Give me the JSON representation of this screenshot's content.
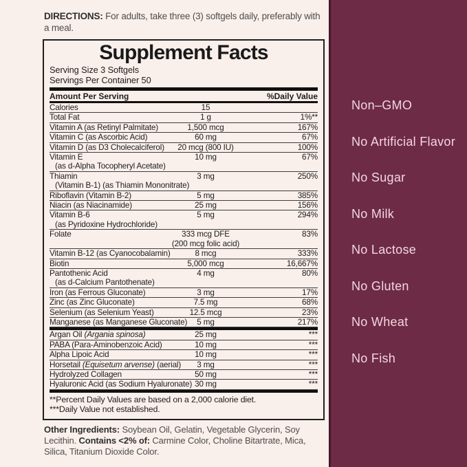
{
  "directions": {
    "label": "DIRECTIONS:",
    "text": " For adults, take three (3) softgels daily, preferably with a meal."
  },
  "panel": {
    "title": "Supplement Facts",
    "serving_size": "Serving Size 3 Softgels",
    "servings_per_container": "Servings Per Container 50",
    "header": {
      "left": "Amount Per Serving",
      "right": "%Daily Value"
    },
    "rows": [
      {
        "name": "Calories",
        "amount": "15",
        "dv": ""
      },
      {
        "name": "Total Fat",
        "amount": "1 g",
        "dv": "1%**"
      },
      {
        "name": "Vitamin A (as Retinyl Palmitate)",
        "amount": "1,500 mcg",
        "dv": "167%"
      },
      {
        "name": "Vitamin C (as Ascorbic Acid)",
        "amount": "60 mg",
        "dv": "67%"
      },
      {
        "name": "Vitamin D (as D3 Cholecalciferol)",
        "amount": "20 mcg (800 IU)",
        "dv": "100%"
      },
      {
        "name": "Vitamin E",
        "sub": "(as d-Alpha Tocopheryl Acetate)",
        "amount": "10 mg",
        "dv": "67%"
      },
      {
        "name": "Thiamin",
        "sub": "(Vitamin B-1) (as Thiamin Mononitrate)",
        "amount": "3 mg",
        "dv": "250%"
      },
      {
        "name": "Riboflavin (Vitamin B-2)",
        "amount": "5 mg",
        "dv": "385%"
      },
      {
        "name": "Niacin (as Niacinamide)",
        "amount": "25 mg",
        "dv": "156%"
      },
      {
        "name": "Vitamin B-6",
        "sub": "(as Pyridoxine Hydrochloride)",
        "amount": "5 mg",
        "dv": "294%"
      },
      {
        "name": "Folate",
        "amount": "333 mcg DFE",
        "amount_sub": "(200 mcg folic acid)",
        "dv": "83%"
      },
      {
        "name": "Vitamin B-12 (as Cyanocobalamin)",
        "amount": "8 mcg",
        "dv": "333%"
      },
      {
        "name": "Biotin",
        "amount": "5,000 mcg",
        "dv": "16,667%"
      },
      {
        "name": "Pantothenic Acid",
        "sub": "(as d-Calcium Pantothenate)",
        "amount": "4 mg",
        "dv": "80%"
      },
      {
        "name": "Iron (as Ferrous Gluconate)",
        "amount": "3 mg",
        "dv": "17%"
      },
      {
        "name": "Zinc (as Zinc Gluconate)",
        "amount": "7.5 mg",
        "dv": "68%"
      },
      {
        "name": "Selenium (as Selenium Yeast)",
        "amount": "12.5 mcg",
        "dv": "23%"
      },
      {
        "name": "Manganese (as Manganese Gluconate)",
        "amount": "5 mg",
        "dv": "217%"
      },
      {
        "sep_before": "thick",
        "name_parts": [
          {
            "t": "Argan Oil ",
            "i": false
          },
          {
            "t": "(Argania spinosa)",
            "i": true
          }
        ],
        "amount": "25 mg",
        "dv": "***"
      },
      {
        "name": "PABA (Para-Aminobenzoic Acid)",
        "amount": "10 mg",
        "dv": "***"
      },
      {
        "name": "Alpha Lipoic Acid",
        "amount": "10 mg",
        "dv": "***"
      },
      {
        "name_parts": [
          {
            "t": "Horsetail ",
            "i": false
          },
          {
            "t": "(Equisetum arvense)",
            "i": true
          },
          {
            "t": " (aerial)",
            "i": false
          }
        ],
        "amount": "3 mg",
        "dv": "***"
      },
      {
        "name": "Hydrolyzed Collagen",
        "amount": "50 mg",
        "dv": "***"
      },
      {
        "name": "Hyaluronic Acid (as Sodium Hyaluronate)",
        "amount": "30 mg",
        "dv": "***"
      }
    ],
    "footnotes": [
      "**Percent Daily Values are based on a 2,000 calorie diet.",
      "***Daily Value not established."
    ]
  },
  "other_ingredients": {
    "label": "Other Ingredients:",
    "text": " Soybean Oil, Gelatin, Vegetable Glycerin, Soy Lecithin. ",
    "contains_label": "Contains <2% of:",
    "contains_text": " Carmine Color, Choline Bitartrate, Mica, Silica, Titanium Dioxide Color."
  },
  "claims": {
    "items": [
      "Non–GMO",
      "No Artificial Flavor",
      "No Sugar",
      "No Milk",
      "No Lactose",
      "No Gluten",
      "No Wheat",
      "No Fish"
    ]
  },
  "colors": {
    "page_bg": "#f9efeb",
    "claims_bg": "#6e2b45",
    "claims_edge": "#451a2d",
    "claims_text": "#f2d7e0",
    "ink": "#1d1d1d"
  }
}
